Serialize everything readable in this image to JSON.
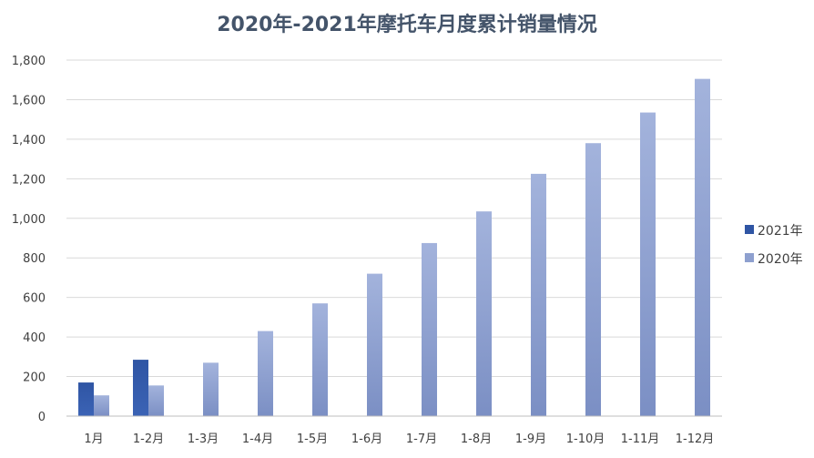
{
  "chart_data": {
    "type": "bar",
    "title": "2020年-2021年摩托车月度累计销量情况",
    "categories": [
      "1月",
      "1-2月",
      "1-3月",
      "1-4月",
      "1-5月",
      "1-6月",
      "1-7月",
      "1-8月",
      "1-9月",
      "1-10月",
      "1-11月",
      "1-12月"
    ],
    "series": [
      {
        "name": "2021年",
        "color": "#2f55a4",
        "values": [
          170,
          285,
          null,
          null,
          null,
          null,
          null,
          null,
          null,
          null,
          null,
          null
        ]
      },
      {
        "name": "2020年",
        "color": "#8ea0cf",
        "values": [
          105,
          155,
          270,
          430,
          570,
          720,
          875,
          1035,
          1225,
          1380,
          1535,
          1705
        ]
      }
    ],
    "ylim": [
      0,
      1800
    ],
    "yticks": [
      "0",
      "200",
      "400",
      "600",
      "800",
      "1,000",
      "1,200",
      "1,400",
      "1,600",
      "1,800"
    ],
    "ytick_values": [
      0,
      200,
      400,
      600,
      800,
      1000,
      1200,
      1400,
      1600,
      1800
    ],
    "grid": true,
    "legend": "right"
  }
}
